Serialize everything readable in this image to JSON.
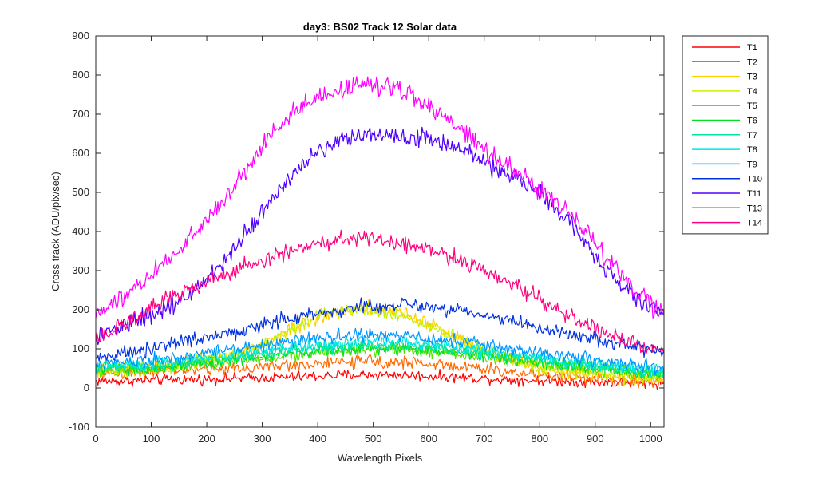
{
  "chart_data": {
    "type": "line",
    "title": "day3: BS02  Track 12 Solar data",
    "xlabel": "Wavelength Pixels",
    "ylabel": "Cross track (ADU/pix/sec)",
    "xlim": [
      0,
      1024
    ],
    "ylim": [
      -100,
      900
    ],
    "xticks": [
      0,
      100,
      200,
      300,
      400,
      500,
      600,
      700,
      800,
      900,
      1000
    ],
    "yticks": [
      -100,
      0,
      100,
      200,
      300,
      400,
      500,
      600,
      700,
      800,
      900
    ],
    "grid": false,
    "legend_position": "outside-top-right",
    "x": [
      0,
      50,
      100,
      150,
      200,
      250,
      300,
      350,
      400,
      450,
      500,
      550,
      600,
      650,
      700,
      750,
      800,
      850,
      900,
      950,
      1000,
      1024
    ],
    "series": [
      {
        "name": "T1",
        "color": "#ff0000",
        "noise": 10,
        "values": [
          18,
          18,
          20,
          22,
          22,
          24,
          26,
          28,
          30,
          33,
          34,
          33,
          30,
          27,
          24,
          21,
          19,
          17,
          15,
          14,
          12,
          12
        ]
      },
      {
        "name": "T2",
        "color": "#ff6a00",
        "noise": 12,
        "values": [
          40,
          40,
          42,
          45,
          47,
          50,
          54,
          58,
          62,
          66,
          68,
          66,
          62,
          56,
          48,
          40,
          34,
          28,
          24,
          20,
          18,
          17
        ]
      },
      {
        "name": "T3",
        "color": "#ffd000",
        "noise": 14,
        "values": [
          45,
          47,
          52,
          60,
          70,
          85,
          110,
          145,
          180,
          200,
          205,
          195,
          165,
          130,
          100,
          75,
          55,
          42,
          35,
          30,
          26,
          25
        ]
      },
      {
        "name": "T4",
        "color": "#c8f000",
        "noise": 14,
        "values": [
          45,
          47,
          52,
          60,
          70,
          85,
          108,
          150,
          185,
          205,
          200,
          185,
          160,
          125,
          95,
          70,
          52,
          40,
          34,
          28,
          25,
          24
        ]
      },
      {
        "name": "T5",
        "color": "#55e600",
        "noise": 12,
        "values": [
          42,
          44,
          48,
          54,
          60,
          68,
          76,
          84,
          90,
          95,
          98,
          96,
          92,
          86,
          78,
          70,
          62,
          54,
          46,
          40,
          35,
          33
        ]
      },
      {
        "name": "T6",
        "color": "#00e020",
        "noise": 12,
        "values": [
          45,
          48,
          52,
          58,
          65,
          72,
          80,
          88,
          95,
          100,
          103,
          102,
          97,
          90,
          82,
          74,
          66,
          58,
          50,
          44,
          38,
          36
        ]
      },
      {
        "name": "T7",
        "color": "#00e5a0",
        "noise": 12,
        "values": [
          50,
          53,
          58,
          64,
          71,
          79,
          87,
          95,
          102,
          107,
          110,
          108,
          104,
          97,
          89,
          80,
          72,
          63,
          55,
          48,
          42,
          40
        ]
      },
      {
        "name": "T8",
        "color": "#00e6e6",
        "noise": 12,
        "values": [
          55,
          58,
          63,
          70,
          78,
          86,
          94,
          102,
          110,
          116,
          118,
          117,
          112,
          105,
          96,
          87,
          78,
          69,
          60,
          52,
          45,
          43
        ]
      },
      {
        "name": "T9",
        "color": "#0096ff",
        "noise": 13,
        "values": [
          62,
          66,
          72,
          80,
          90,
          100,
          110,
          120,
          127,
          132,
          135,
          133,
          128,
          120,
          110,
          100,
          90,
          80,
          70,
          62,
          55,
          52
        ]
      },
      {
        "name": "T10",
        "color": "#0030e0",
        "noise": 14,
        "values": [
          75,
          85,
          100,
          115,
          130,
          145,
          160,
          175,
          190,
          202,
          210,
          212,
          210,
          200,
          185,
          170,
          155,
          140,
          125,
          110,
          95,
          88
        ]
      },
      {
        "name": "T11",
        "color": "#5000ff",
        "noise": 18,
        "values": [
          125,
          155,
          185,
          225,
          270,
          360,
          450,
          540,
          605,
          640,
          648,
          648,
          640,
          615,
          580,
          540,
          500,
          430,
          340,
          260,
          210,
          190
        ]
      },
      {
        "name": "T13",
        "color": "#ff00ff",
        "noise": 18,
        "values": [
          195,
          230,
          290,
          350,
          430,
          520,
          620,
          700,
          745,
          770,
          780,
          760,
          720,
          670,
          610,
          560,
          510,
          450,
          370,
          280,
          210,
          180
        ]
      },
      {
        "name": "T14",
        "color": "#ff0080",
        "noise": 16,
        "values": [
          120,
          160,
          205,
          240,
          270,
          300,
          325,
          350,
          370,
          380,
          380,
          372,
          355,
          330,
          300,
          265,
          225,
          185,
          150,
          120,
          105,
          100
        ]
      }
    ]
  }
}
